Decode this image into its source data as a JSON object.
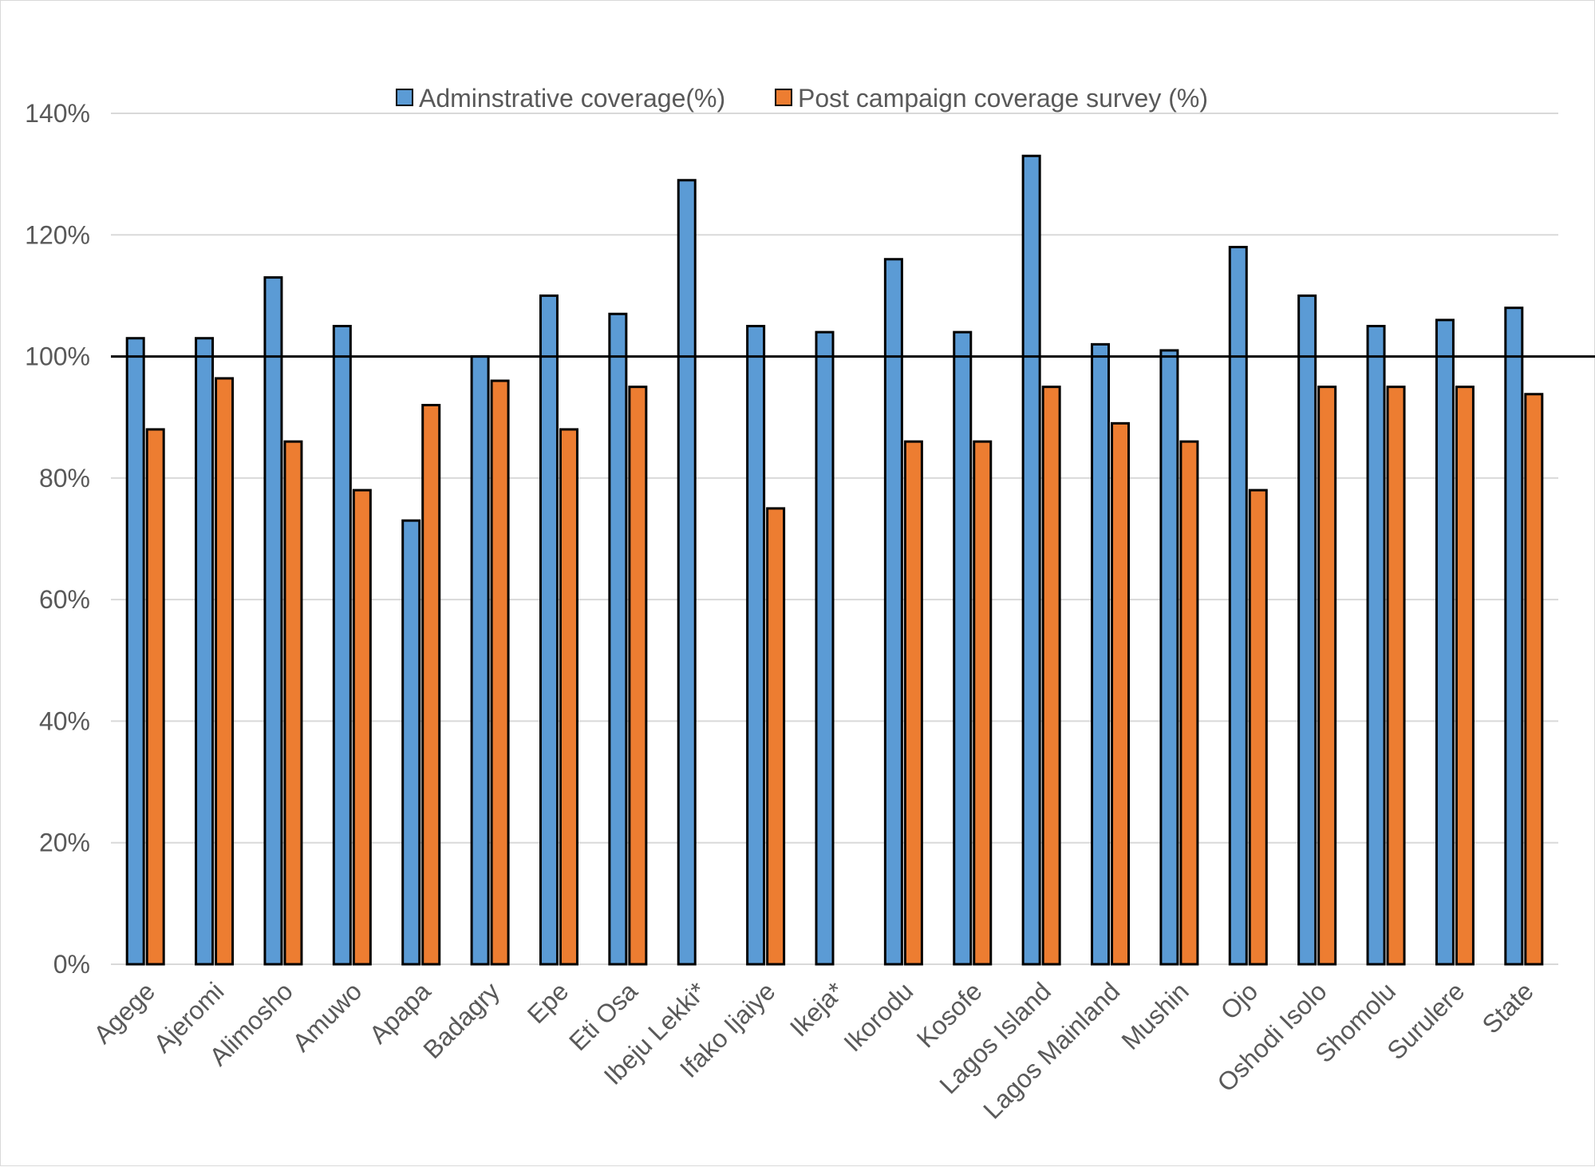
{
  "chart_data": {
    "type": "bar",
    "title": "",
    "xlabel": "",
    "ylabel": "",
    "ylim": [
      0,
      1.4
    ],
    "y_tick_step": 0.2,
    "y_tick_format": "percent",
    "grid": true,
    "reference_line": 1.0,
    "legend_position": "top-center",
    "categories": [
      "Agege",
      "Ajeromi",
      "Alimosho",
      "Amuwo",
      "Apapa",
      "Badagry",
      "Epe",
      "Eti Osa",
      "Ibeju Lekki*",
      "Ifako Ijaiye",
      "Ikeja*",
      "Ikorodu",
      "Kosofe",
      "Lagos Island",
      "Lagos Mainland",
      "Mushin",
      "Ojo",
      "Oshodi Isolo",
      "Shomolu",
      "Surulere",
      "State"
    ],
    "series": [
      {
        "name": "Adminstrative coverage(%)",
        "color": "#5b9bd5",
        "values": [
          1.03,
          1.03,
          1.13,
          1.05,
          0.73,
          1.0,
          1.1,
          1.07,
          1.29,
          1.05,
          1.04,
          1.16,
          1.04,
          1.33,
          1.02,
          1.01,
          1.18,
          1.1,
          1.05,
          1.06,
          1.08
        ]
      },
      {
        "name": "Post campaign coverage survey (%)",
        "color": "#ed7d31",
        "values": [
          0.88,
          0.964,
          0.86,
          0.78,
          0.92,
          0.96,
          0.88,
          0.95,
          null,
          0.75,
          null,
          0.86,
          0.86,
          0.95,
          0.89,
          0.86,
          0.78,
          0.95,
          0.95,
          0.95,
          0.938
        ]
      }
    ]
  }
}
